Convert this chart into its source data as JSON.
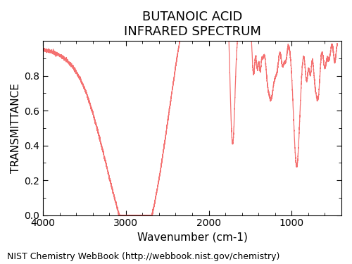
{
  "title_line1": "BUTANOIC ACID",
  "title_line2": "INFRARED SPECTRUM",
  "xlabel": "Wavenumber (cm-1)",
  "ylabel": "TRANSMITTANCE",
  "footnote": "NIST Chemistry WebBook (http://webbook.nist.gov/chemistry)",
  "line_color": "#f47070",
  "background_color": "#ffffff",
  "xlim": [
    4000,
    400
  ],
  "ylim": [
    0.0,
    1.0
  ],
  "xticks": [
    4000,
    3000,
    2000,
    1000
  ],
  "yticks": [
    0.0,
    0.2,
    0.4,
    0.6,
    0.8
  ],
  "title_fontsize": 13,
  "axis_label_fontsize": 11,
  "footnote_fontsize": 9
}
